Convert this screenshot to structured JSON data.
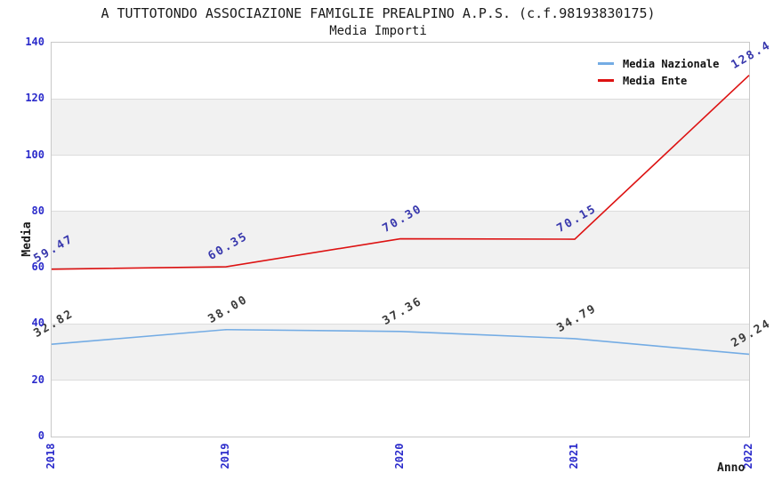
{
  "chart_data": {
    "type": "line",
    "title": "A TUTTOTONDO ASSOCIAZIONE FAMIGLIE PREALPINO A.P.S. (c.f.98193830175)",
    "subtitle": "Media Importi",
    "xlabel": "Anno",
    "ylabel": "Media",
    "x": [
      "2018",
      "2019",
      "2020",
      "2021",
      "2022"
    ],
    "ylim": [
      0,
      140
    ],
    "ytick_step": 20,
    "yticks": [
      0,
      20,
      40,
      60,
      80,
      100,
      120,
      140
    ],
    "grid": "horizontal-bands",
    "legend_position": "top-right-inside",
    "series": [
      {
        "name": "Media Nazionale",
        "color": "#74ace4",
        "values": [
          32.82,
          38.0,
          37.36,
          34.79,
          29.24
        ],
        "labels": [
          "32.82",
          "38.00",
          "37.36",
          "34.79",
          "29.24"
        ],
        "label_color": "#3a3a3a"
      },
      {
        "name": "Media Ente",
        "color": "#dd1212",
        "values": [
          59.47,
          60.35,
          70.3,
          70.15,
          128.4
        ],
        "labels": [
          "59.47",
          "60.35",
          "70.30",
          "70.15",
          "128.4"
        ],
        "label_color": "#3838ad"
      }
    ]
  },
  "colors": {
    "tick_label": "#2b2bcb",
    "band_fill": "#f1f1f1",
    "grid_line": "#dcdcdc",
    "plot_border": "#c9c9c9",
    "text": "#1a1a1a",
    "background": "#ffffff"
  }
}
